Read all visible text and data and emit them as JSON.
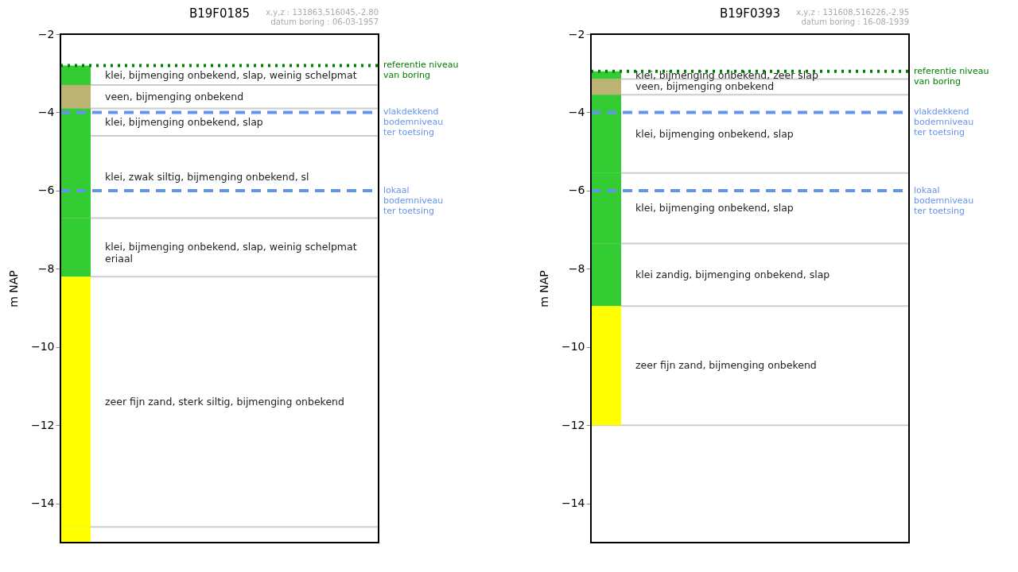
{
  "chart_data": [
    {
      "type": "bar",
      "title": "B19F0185",
      "subtitle": "x,y,z : 131863,516045,-2.80\ndatum boring : 06-03-1957",
      "ylabel": "m NAP",
      "categories": [
        null
      ],
      "ylim": [
        -15,
        -2
      ],
      "yticks": [
        -2,
        -4,
        -6,
        -8,
        -10,
        -12,
        -14
      ],
      "grid": false,
      "series": [
        {
          "name": "klei,  bijmenging onbekend, slap, weinig schelpmat",
          "color": "#33cc33",
          "base": [
            -3.3
          ],
          "values": [
            0.5
          ]
        },
        {
          "name": "veen,  bijmenging onbekend",
          "color": "#bdb474",
          "base": [
            -3.9
          ],
          "values": [
            0.6
          ]
        },
        {
          "name": "klei,  bijmenging onbekend, slap",
          "color": "#33cc33",
          "base": [
            -4.6
          ],
          "values": [
            0.7
          ]
        },
        {
          "name": "klei, zwak siltig,  bijmenging onbekend, sl",
          "color": "#33cc33",
          "base": [
            -6.7
          ],
          "values": [
            2.1
          ]
        },
        {
          "name": "klei,  bijmenging onbekend, slap, weinig schelpmat\neriaal",
          "color": "#33cc33",
          "base": [
            -8.2
          ],
          "values": [
            1.5
          ]
        },
        {
          "name": "zeer fijn zand, sterk siltig,  bijmenging onbekend",
          "color": "#ffff00",
          "base": [
            -14.6
          ],
          "values": [
            6.4
          ]
        },
        {
          "color": "#ffff00",
          "base": [
            -15
          ],
          "values": [
            0.4
          ]
        }
      ],
      "ref_lines": [
        {
          "axis": "y",
          "value": -3.3,
          "color": "#cccccc"
        },
        {
          "axis": "y",
          "value": -3.9,
          "color": "#cccccc"
        },
        {
          "axis": "y",
          "value": -4.6,
          "color": "#cccccc"
        },
        {
          "axis": "y",
          "value": -6.7,
          "color": "#cccccc"
        },
        {
          "axis": "y",
          "value": -8.2,
          "color": "#cccccc"
        },
        {
          "axis": "y",
          "value": -14.6,
          "color": "#cccccc"
        },
        {
          "axis": "y",
          "value": -2.8,
          "label": "referentie niveau\nvan boring",
          "color": "#008000",
          "line_style": "dotted"
        },
        {
          "axis": "y",
          "value": -4,
          "label": "vlakdekkend\nbodemniveau\nter toetsing",
          "color": "#6495ed",
          "line_style": "dashed"
        },
        {
          "axis": "y",
          "value": -6,
          "label": "lokaal\nbodemniveau\nter toetsing",
          "color": "#6495ed",
          "line_style": "dashed"
        }
      ]
    },
    {
      "type": "bar",
      "title": "B19F0393",
      "subtitle": "x,y,z : 131608,516226,-2.95\ndatum boring : 16-08-1939",
      "ylabel": "m NAP",
      "categories": [
        null
      ],
      "ylim": [
        -15,
        -2
      ],
      "yticks": [
        -2,
        -4,
        -6,
        -8,
        -10,
        -12,
        -14
      ],
      "grid": false,
      "series": [
        {
          "name": "klei,  bijmenging onbekend, zeer slap",
          "color": "#33cc33",
          "base": [
            -3.15
          ],
          "values": [
            0.2
          ]
        },
        {
          "name": "veen,  bijmenging onbekend",
          "color": "#bdb474",
          "base": [
            -3.55
          ],
          "values": [
            0.4
          ]
        },
        {
          "name": "klei,  bijmenging onbekend, slap",
          "color": "#33cc33",
          "base": [
            -5.55
          ],
          "values": [
            2.0
          ]
        },
        {
          "name": "klei,  bijmenging onbekend, slap",
          "color": "#33cc33",
          "base": [
            -7.35
          ],
          "values": [
            1.8
          ]
        },
        {
          "name": "klei zandig,  bijmenging onbekend, slap",
          "color": "#33cc33",
          "base": [
            -8.95
          ],
          "values": [
            1.6
          ]
        },
        {
          "name": "zeer fijn zand,  bijmenging onbekend",
          "color": "#ffff00",
          "base": [
            -12
          ],
          "values": [
            3.05
          ]
        }
      ],
      "ref_lines": [
        {
          "axis": "y",
          "value": -3.15,
          "color": "#cccccc"
        },
        {
          "axis": "y",
          "value": -3.55,
          "color": "#cccccc"
        },
        {
          "axis": "y",
          "value": -5.55,
          "color": "#cccccc"
        },
        {
          "axis": "y",
          "value": -7.35,
          "color": "#cccccc"
        },
        {
          "axis": "y",
          "value": -8.95,
          "color": "#cccccc"
        },
        {
          "axis": "y",
          "value": -12,
          "color": "#cccccc"
        },
        {
          "axis": "y",
          "value": -2.95,
          "label": "referentie niveau\nvan boring",
          "color": "#008000",
          "line_style": "dotted"
        },
        {
          "axis": "y",
          "value": -4,
          "label": "vlakdekkend\nbodemniveau\nter toetsing",
          "color": "#6495ed",
          "line_style": "dashed"
        },
        {
          "axis": "y",
          "value": -6,
          "label": "lokaal\nbodemniveau\nter toetsing",
          "color": "#6495ed",
          "line_style": "dashed"
        }
      ]
    }
  ]
}
